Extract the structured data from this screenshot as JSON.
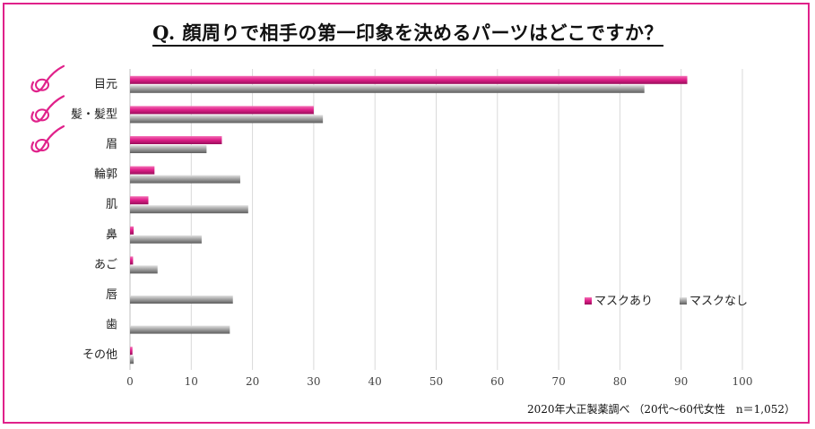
{
  "title": "Q. 顔周りで相手の第一印象を決めるパーツはどこですか？",
  "source": "2020年大正製薬調べ （20代～60代女性　n＝1,052）",
  "colors": {
    "frame": "#e0218a",
    "mask_on": "#e0218a",
    "mask_off": "#8c8c8c",
    "check": "#e0218a"
  },
  "checked_icon": "checkmark-icon",
  "chart_data": {
    "type": "bar",
    "orientation": "horizontal",
    "categories": [
      "目元",
      "髪・髪型",
      "眉",
      "輪郭",
      "肌",
      "鼻",
      "あご",
      "唇",
      "歯",
      "その他"
    ],
    "series": [
      {
        "name": "マスクあり",
        "values": [
          91,
          30,
          15,
          4,
          3,
          0.6,
          0.5,
          0,
          0,
          0.4
        ]
      },
      {
        "name": "マスクなし",
        "values": [
          84,
          31.5,
          12.5,
          18,
          19.3,
          11.7,
          4.5,
          16.8,
          16.3,
          0.6
        ]
      }
    ],
    "xlim": [
      0,
      100
    ],
    "xticks": [
      0,
      10,
      20,
      30,
      40,
      50,
      60,
      70,
      80,
      90,
      100
    ],
    "grid": true,
    "legend_position": "right",
    "checked_categories": [
      "目元",
      "髪・髪型",
      "眉"
    ]
  }
}
